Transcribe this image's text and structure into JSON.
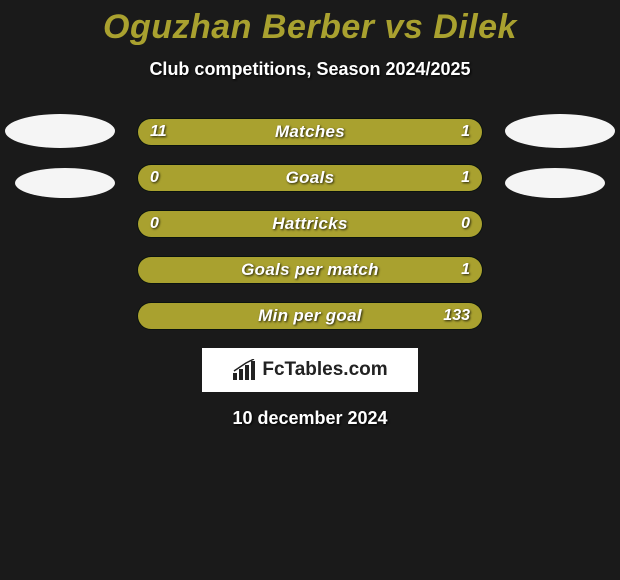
{
  "background_color": "#1a1a1a",
  "title": {
    "text": "Oguzhan Berber vs Dilek",
    "color": "#a9a12f",
    "fontsize": 34
  },
  "subtitle": {
    "text": "Club competitions, Season 2024/2025",
    "color": "#ffffff",
    "fontsize": 18
  },
  "crest_color": "#f5f5f5",
  "fill_color": "#a9a12f",
  "track_color": "#0f1a14",
  "text_color": "#ffffff",
  "stats": [
    {
      "label": "Matches",
      "left_value": "11",
      "right_value": "1",
      "left_pct": 77,
      "right_pct": 23
    },
    {
      "label": "Goals",
      "left_value": "0",
      "right_value": "1",
      "left_pct": 20,
      "right_pct": 80
    },
    {
      "label": "Hattricks",
      "left_value": "0",
      "right_value": "0",
      "left_pct": 50,
      "right_pct": 50
    },
    {
      "label": "Goals per match",
      "left_value": "",
      "right_value": "1",
      "left_pct": 0,
      "right_pct": 100
    },
    {
      "label": "Min per goal",
      "left_value": "",
      "right_value": "133",
      "left_pct": 0,
      "right_pct": 100
    }
  ],
  "brand": {
    "text": "FcTables.com",
    "icon_color": "#222222",
    "bg": "#ffffff"
  },
  "date": "10 december 2024"
}
